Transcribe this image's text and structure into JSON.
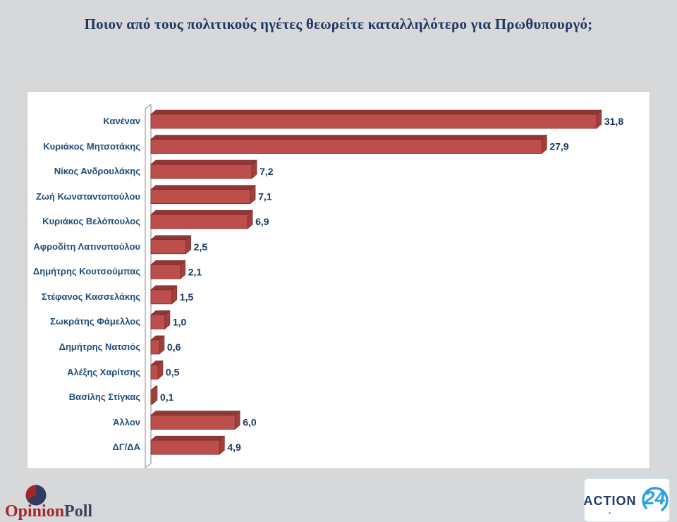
{
  "title": "Ποιον από τους πολιτικούς ηγέτες θεωρείτε καταλληλότερο για Πρωθυπουργό;",
  "chart_data": {
    "type": "bar",
    "orientation": "horizontal",
    "title": "Ποιον από τους πολιτικούς ηγέτες θεωρείτε καταλληλότερο για Πρωθυπουργό;",
    "categories": [
      "Κανέναν",
      "Κυριάκος Μητσοτάκης",
      "Νίκος Ανδρουλάκης",
      "Ζωή Κωνσταντοπούλου",
      "Κυριάκος Βελόπουλος",
      "Αφροδίτη Λατινοπούλου",
      "Δημήτρης Κουτσούμπας",
      "Στέφανος Κασσελάκης",
      "Σωκράτης Φάμελλος",
      "Δημήτρης Νατσιός",
      "Αλέξης Χαρίτσης",
      "Βασίλης Στίγκας",
      "Άλλον",
      "ΔΓ/ΔΑ"
    ],
    "values": [
      31.8,
      27.9,
      7.2,
      7.1,
      6.9,
      2.5,
      2.1,
      1.5,
      1.0,
      0.6,
      0.5,
      0.1,
      6.0,
      4.9
    ],
    "value_labels": [
      "31,8",
      "27,9",
      "7,2",
      "7,1",
      "6,9",
      "2,5",
      "2,1",
      "1,5",
      "1,0",
      "0,6",
      "0,5",
      "0,1",
      "6,0",
      "4,9"
    ],
    "xlim": [
      0,
      32
    ],
    "grid": false,
    "legend": "none",
    "style": "3d",
    "colors": {
      "bar_front": "#bc4f4b",
      "bar_top": "#8f3735",
      "bar_side": "#a03f3c",
      "bar_outline": "#7e2d2a",
      "wall_fill": "#fbfbfb",
      "wall_stroke": "#8c8c8c",
      "value_label": "#17375e",
      "category_label": "#1f4e79"
    }
  },
  "colors": {
    "background": "#d7d8d9",
    "panel": "#ffffff",
    "title_text": "#1f3864",
    "opinionpoll_red": "#a8252c",
    "opinionpoll_navy": "#39425c",
    "action24_navy": "#1d3c6e",
    "action24_blue": "#2aa0e2"
  },
  "footer": {
    "opinionpoll": {
      "text_primary": "Opinion",
      "text_secondary": "Poll",
      "icon": "pie-chart-icon"
    },
    "action24": {
      "text": "ACTION",
      "number": "24"
    }
  }
}
